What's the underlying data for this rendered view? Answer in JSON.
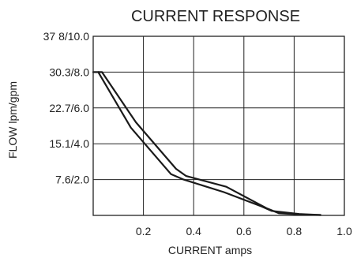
{
  "chart_data": {
    "type": "line",
    "title": "CURRENT RESPONSE",
    "xlabel": "CURRENT amps",
    "ylabel": "FLOW lpm/gpm",
    "xlim": [
      0,
      1.0
    ],
    "ylim": [
      0,
      10
    ],
    "x_ticks": [
      {
        "value": 0.2,
        "label": "0.2"
      },
      {
        "value": 0.4,
        "label": "0.4"
      },
      {
        "value": 0.6,
        "label": "0.6"
      },
      {
        "value": 0.8,
        "label": "0.8"
      },
      {
        "value": 1.0,
        "label": "1.0"
      }
    ],
    "y_ticks": [
      {
        "value": 2,
        "label": "7.6/2.0"
      },
      {
        "value": 4,
        "label": "15.1/4.0"
      },
      {
        "value": 6,
        "label": "22.7/6.0"
      },
      {
        "value": 8,
        "label": "30.3/8.0"
      },
      {
        "value": 10,
        "label": "37 8/10.0"
      }
    ],
    "x_grid": [
      0.2,
      0.4,
      0.6,
      0.8
    ],
    "y_grid": [
      2,
      4,
      6,
      8
    ],
    "grid": true,
    "series": [
      {
        "color": "#1a1a1a",
        "x": [
          0.905,
          0.82,
          0.71,
          0.67,
          0.52,
          0.36,
          0.31,
          0.15,
          0.02,
          0.0
        ],
        "y": [
          0.02,
          0.08,
          0.25,
          0.5,
          1.3,
          2.0,
          2.3,
          4.9,
          8.0,
          8.0
        ]
      },
      {
        "color": "#1a1a1a",
        "x": [
          0.02,
          0.035,
          0.17,
          0.33,
          0.37,
          0.53,
          0.69,
          0.74,
          0.84,
          0.905
        ],
        "y": [
          8.0,
          8.0,
          5.2,
          2.6,
          2.2,
          1.6,
          0.4,
          0.12,
          0.04,
          0.02
        ]
      }
    ]
  }
}
